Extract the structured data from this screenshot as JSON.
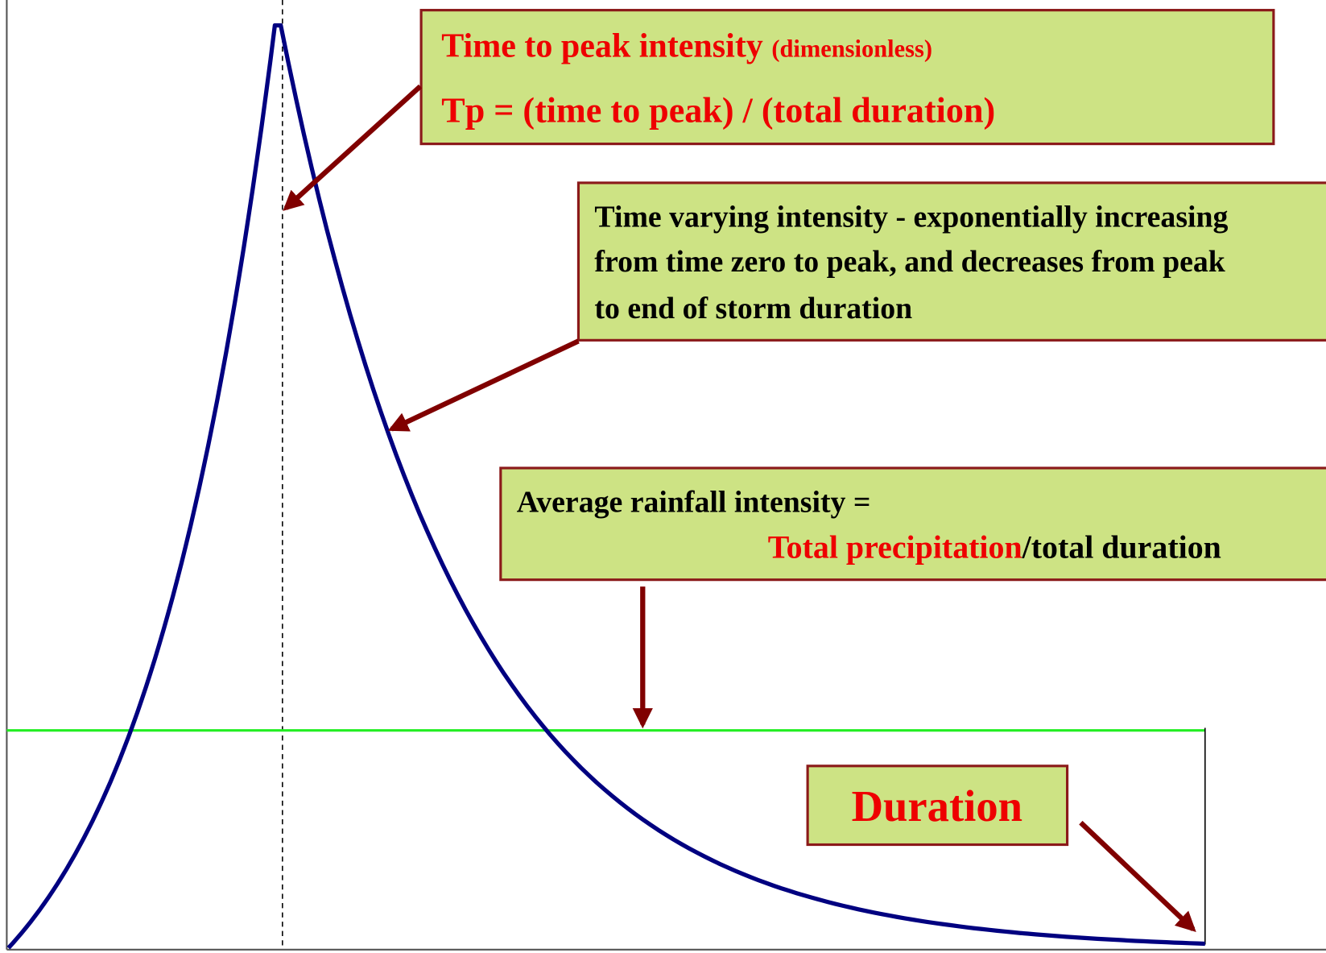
{
  "peak_box": {
    "title": "Time to peak intensity",
    "note": "(dimensionless)",
    "formula": "Tp = (time to peak) / (total duration)"
  },
  "varying_box": {
    "lines": [
      "Time varying intensity - exponentially increasing",
      "from time zero to peak, and decreases from peak",
      "to end of storm duration"
    ]
  },
  "average_box": {
    "line1": "Average rainfall intensity =",
    "numerator": "Total precipitation",
    "denominator": "/total duration"
  },
  "duration_box": {
    "label": "Duration"
  }
}
